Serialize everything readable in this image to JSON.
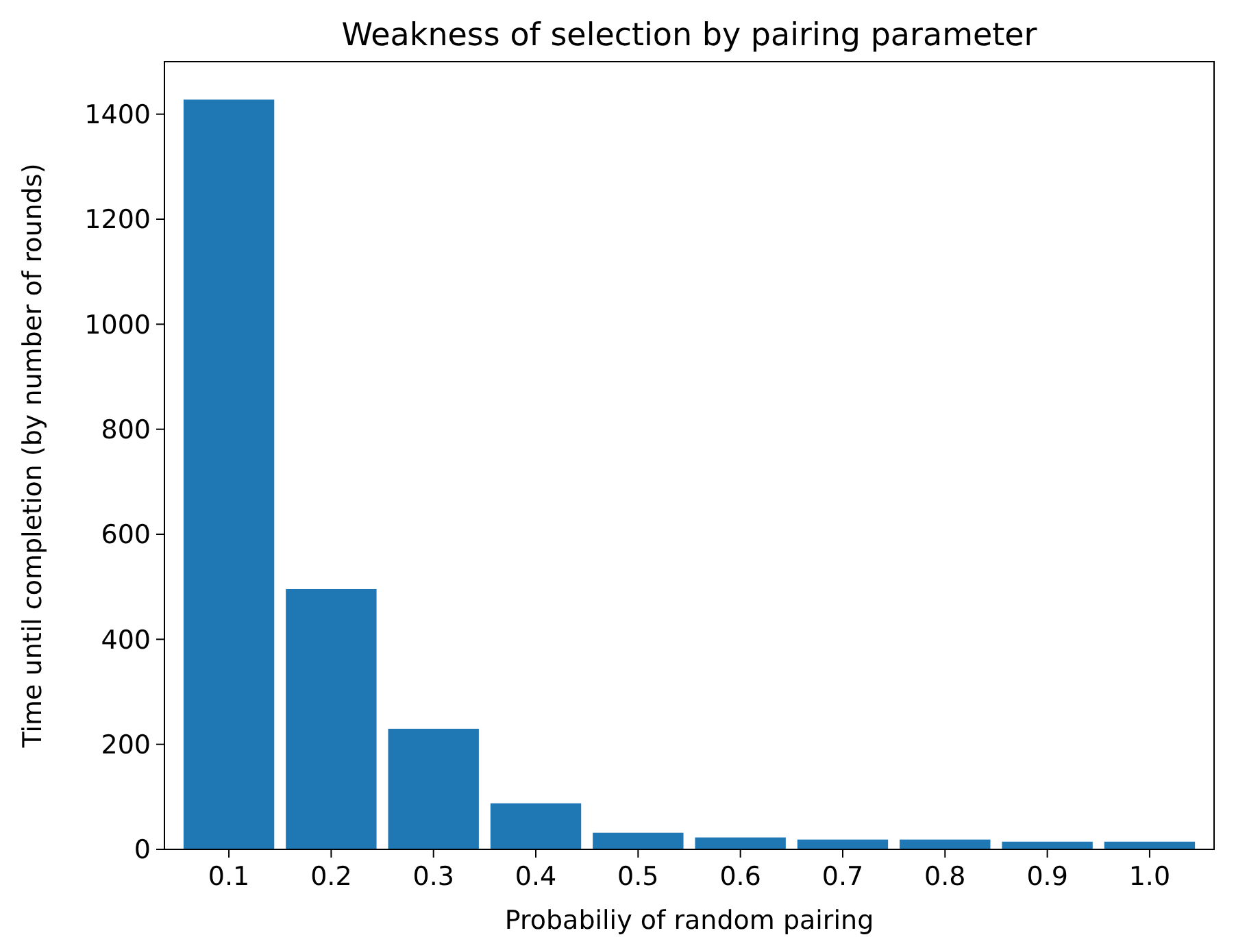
{
  "chart_data": {
    "type": "bar",
    "title": "Weakness of selection by pairing parameter",
    "xlabel": "Probabiliy of random pairing",
    "ylabel": "Time until completion (by number of rounds)",
    "categories": [
      "0.1",
      "0.2",
      "0.3",
      "0.4",
      "0.5",
      "0.6",
      "0.7",
      "0.8",
      "0.9",
      "1.0"
    ],
    "values": [
      1429,
      497,
      231,
      89,
      33,
      24,
      20,
      20,
      16,
      16
    ],
    "color": "#1f77b4",
    "ylim": [
      0,
      1500
    ],
    "yticks": [
      0,
      200,
      400,
      600,
      800,
      1000,
      1200,
      1400
    ],
    "grid": false
  }
}
